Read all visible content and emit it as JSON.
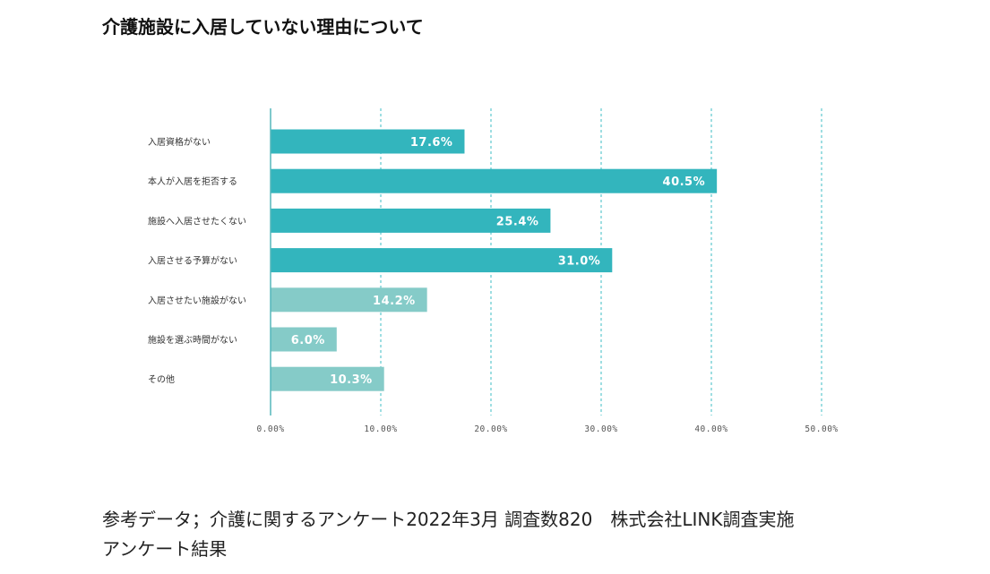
{
  "page": {
    "title": "介護施設に入居していない理由について",
    "footer_line1": "参考データ；介護に関するアンケート2022年3月 調査数820　株式会社LINK調査実施",
    "footer_line2": "アンケート結果"
  },
  "colors": {
    "primary_bar": "#33b5bd",
    "secondary_bar": "#85cbc8",
    "grid": "#3dbdc5",
    "axis": "#55b7bc",
    "bar_label": "#ffffff",
    "tick_label": "#555555"
  },
  "chart_data": {
    "type": "bar",
    "orientation": "horizontal",
    "title": "介護施設に入居していない理由について",
    "categories": [
      "入居資格がない",
      "本人が入居を拒否する",
      "施設へ入居させたくない",
      "入居させる予算がない",
      "入居させたい施設がない",
      "施設を選ぶ時間がない",
      "その他"
    ],
    "values": [
      17.6,
      40.5,
      25.4,
      31.0,
      14.2,
      6.0,
      10.3
    ],
    "value_labels": [
      "17.6%",
      "40.5%",
      "25.4%",
      "31.0%",
      "14.2%",
      "6.0%",
      "10.3%"
    ],
    "bar_color_group": [
      "primary",
      "primary",
      "primary",
      "primary",
      "secondary",
      "secondary",
      "secondary"
    ],
    "xlim": [
      0,
      50
    ],
    "xticks": [
      0,
      10,
      20,
      30,
      40,
      50
    ],
    "xtick_labels": [
      "0.00%",
      "10.00%",
      "20.00%",
      "30.00%",
      "40.00%",
      "50.00%"
    ],
    "grid": true,
    "xlabel": "",
    "ylabel": ""
  }
}
